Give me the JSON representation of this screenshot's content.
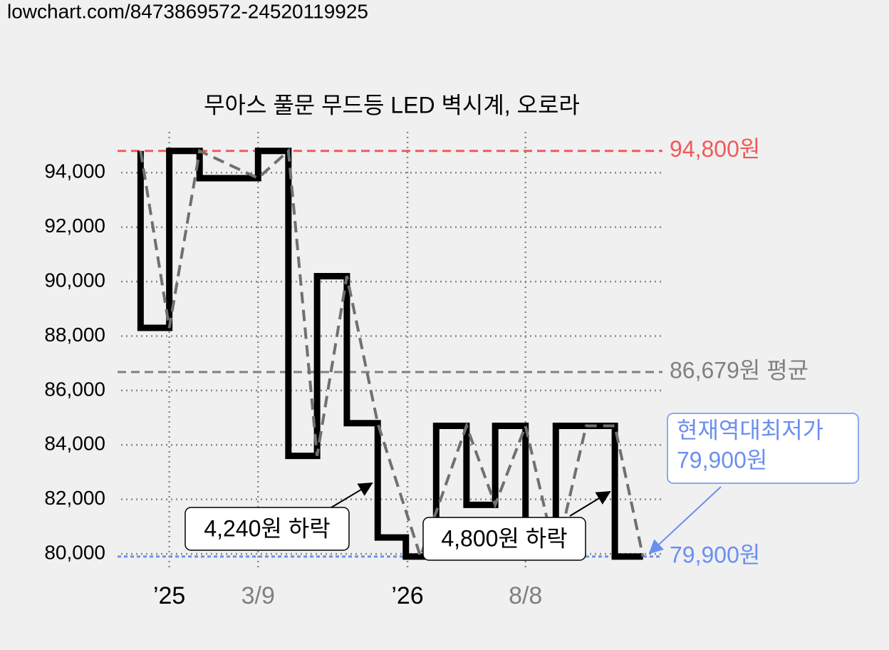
{
  "header": {
    "url": "lowchart.com/8473869572-24520119925"
  },
  "chart_data": {
    "type": "step-line",
    "title": "무아스 풀문 무드등 LED 벽시계, 오로라",
    "xlim": [
      0,
      100
    ],
    "xticks": [
      {
        "value": 8.9,
        "label": "’25"
      },
      {
        "value": 25.3,
        "label": "3/9"
      },
      {
        "value": 52.9,
        "label": "’26"
      },
      {
        "value": 74.7,
        "label": "8/8"
      }
    ],
    "ylim": [
      79400,
      95500
    ],
    "yticks": [
      {
        "value": 80000,
        "label": "80,000"
      },
      {
        "value": 82000,
        "label": "82,000"
      },
      {
        "value": 84000,
        "label": "84,000"
      },
      {
        "value": 86000,
        "label": "86,000"
      },
      {
        "value": 88000,
        "label": "88,000"
      },
      {
        "value": 90000,
        "label": "90,000"
      },
      {
        "value": 92000,
        "label": "92,000"
      },
      {
        "value": 94000,
        "label": "94,000"
      }
    ],
    "grid": true,
    "series": [
      {
        "style": "step",
        "color": "#000000",
        "x": [
          3.6,
          3.6,
          8.9,
          14.5,
          25.3,
          30.9,
          36.2,
          41.7,
          47.4,
          52.6,
          58.2,
          63.8,
          69.1,
          74.7,
          80.3,
          91.2,
          96.4
        ],
        "values": [
          94800,
          88300,
          94800,
          93800,
          94800,
          83600,
          90200,
          84800,
          80600,
          79900,
          84700,
          81800,
          84700,
          79900,
          84700,
          79900,
          79900
        ]
      },
      {
        "style": "dashed",
        "color": "#707070",
        "x": [
          3.6,
          8.9,
          14.5,
          25.3,
          30.9,
          36.2,
          41.7,
          47.4,
          55.3,
          63.8,
          69.1,
          74.7,
          80.3,
          85.9,
          91.2,
          96.4
        ],
        "values": [
          94800,
          88300,
          94800,
          93800,
          94800,
          83600,
          90200,
          84800,
          79900,
          84700,
          81800,
          84700,
          79900,
          84700,
          84700,
          79900
        ]
      }
    ],
    "reference_lines": [
      {
        "value": 94800,
        "label": "94,800원",
        "color": "#f05a5a"
      },
      {
        "value": 86679,
        "label": "86,679원 평균",
        "color": "#808080"
      },
      {
        "value": 79900,
        "label": "79,900원",
        "color": "#6b8ff0"
      }
    ],
    "callout": {
      "lines": [
        "현재역대최저가",
        "79,900원"
      ],
      "color": "#6b8ff0"
    },
    "annotations": [
      "4,240원 하락",
      "4,800원 하락"
    ]
  }
}
